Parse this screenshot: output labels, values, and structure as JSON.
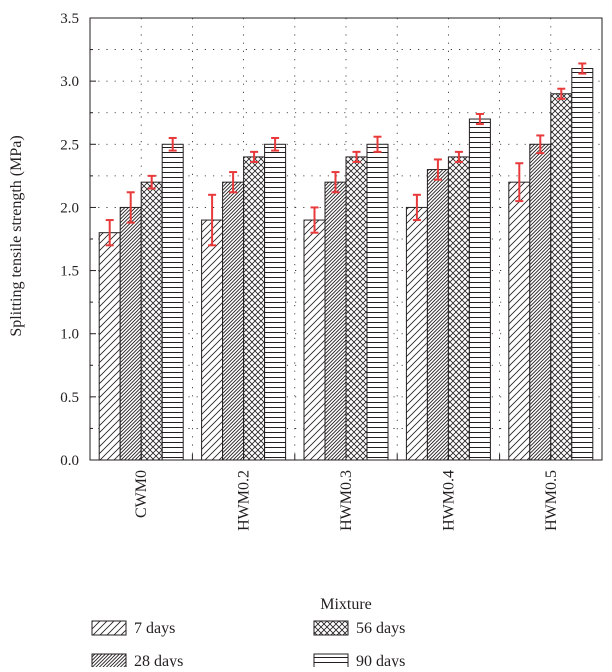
{
  "chart_data": {
    "type": "bar",
    "xlabel": "Mixture",
    "ylabel": "Splitting tensile strength (MPa)",
    "categories": [
      "CWM0",
      "HWM0.2",
      "HWM0.3",
      "HWM0.4",
      "HWM0.5"
    ],
    "ylim": [
      0,
      3.5
    ],
    "yticks": [
      "0.0",
      "0.5",
      "1.0",
      "1.5",
      "2.0",
      "2.5",
      "3.0",
      "3.5"
    ],
    "grid": true,
    "legend_position": "bottom",
    "error_bar_color": "#e8393b",
    "series": [
      {
        "name": "7 days",
        "pattern": "diagonal-sparse",
        "values": [
          1.8,
          1.9,
          1.9,
          2.0,
          2.2
        ],
        "errors": [
          0.1,
          0.2,
          0.1,
          0.1,
          0.15
        ]
      },
      {
        "name": "28 days",
        "pattern": "diagonal-dense",
        "values": [
          2.0,
          2.2,
          2.2,
          2.3,
          2.5
        ],
        "errors": [
          0.12,
          0.08,
          0.08,
          0.08,
          0.07
        ]
      },
      {
        "name": "56 days",
        "pattern": "crosshatch",
        "values": [
          2.2,
          2.4,
          2.4,
          2.4,
          2.9
        ],
        "errors": [
          0.05,
          0.04,
          0.04,
          0.04,
          0.04
        ]
      },
      {
        "name": "90 days",
        "pattern": "horizontal",
        "values": [
          2.5,
          2.5,
          2.5,
          2.7,
          3.1
        ],
        "errors": [
          0.05,
          0.05,
          0.06,
          0.04,
          0.04
        ]
      }
    ]
  }
}
